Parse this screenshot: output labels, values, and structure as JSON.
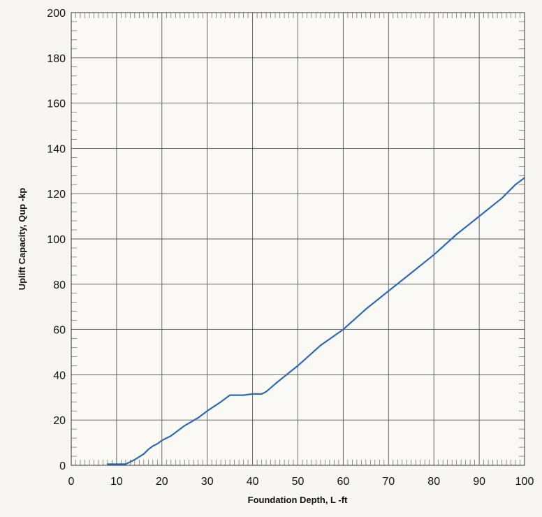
{
  "chart_data": {
    "type": "line",
    "xlabel": "Foundation Depth,  L -ft",
    "ylabel": "Uplift Capacity,  Qup -kp",
    "xlim": [
      0,
      100
    ],
    "ylim": [
      0,
      200
    ],
    "xticks": [
      0,
      10,
      20,
      30,
      40,
      50,
      60,
      70,
      80,
      90,
      100
    ],
    "yticks": [
      0,
      20,
      40,
      60,
      80,
      100,
      120,
      140,
      160,
      180,
      200
    ],
    "grid": true,
    "legend": "none",
    "series": [
      {
        "color": "#2e6ab3",
        "x": [
          8,
          12,
          14,
          16,
          17,
          18,
          19,
          20,
          22,
          25,
          28,
          30,
          33,
          35,
          38,
          40,
          42,
          43,
          45,
          50,
          55,
          60,
          65,
          70,
          75,
          80,
          85,
          90,
          95,
          98,
          100
        ],
        "y": [
          0.5,
          0.5,
          2.5,
          5,
          7,
          8.5,
          9.5,
          11,
          13,
          17.5,
          21,
          24,
          28,
          31,
          31,
          31.5,
          31.5,
          32.5,
          36,
          44,
          53,
          60,
          69,
          77,
          85,
          93,
          102,
          110,
          118,
          124,
          127
        ]
      }
    ]
  }
}
